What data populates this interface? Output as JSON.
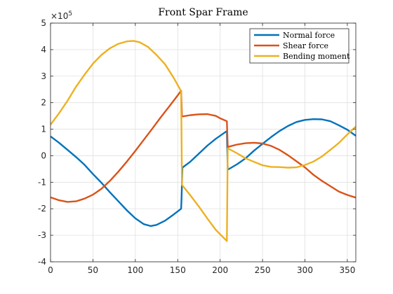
{
  "chart_data": {
    "type": "line",
    "title": "Front Spar Frame",
    "xlabel": "",
    "ylabel": "",
    "xlim": [
      0,
      360
    ],
    "ylim": [
      -4,
      5
    ],
    "y_scale_exponent": 5,
    "y_scale_prefix": "×10",
    "xticks": [
      0,
      50,
      100,
      150,
      200,
      250,
      300,
      350
    ],
    "yticks": [
      -4,
      -3,
      -2,
      -1,
      0,
      1,
      2,
      3,
      4,
      5
    ],
    "grid": true,
    "legend_position": "top-right",
    "series": [
      {
        "name": "Normal force",
        "color": "#0072BD",
        "points": [
          [
            0,
            0.73
          ],
          [
            10,
            0.49
          ],
          [
            20,
            0.22
          ],
          [
            30,
            -0.05
          ],
          [
            40,
            -0.34
          ],
          [
            50,
            -0.69
          ],
          [
            60,
            -1.02
          ],
          [
            70,
            -1.38
          ],
          [
            80,
            -1.72
          ],
          [
            90,
            -2.06
          ],
          [
            100,
            -2.36
          ],
          [
            110,
            -2.58
          ],
          [
            118,
            -2.65
          ],
          [
            125,
            -2.61
          ],
          [
            135,
            -2.45
          ],
          [
            145,
            -2.22
          ],
          [
            154,
            -2.0
          ],
          [
            154.5,
            -1.6
          ],
          [
            155.5,
            -0.45
          ],
          [
            165,
            -0.22
          ],
          [
            175,
            0.08
          ],
          [
            185,
            0.38
          ],
          [
            195,
            0.64
          ],
          [
            208,
            0.93
          ],
          [
            209,
            -0.53
          ],
          [
            220,
            -0.32
          ],
          [
            230,
            -0.1
          ],
          [
            240,
            0.19
          ],
          [
            250,
            0.45
          ],
          [
            260,
            0.7
          ],
          [
            270,
            0.93
          ],
          [
            280,
            1.12
          ],
          [
            290,
            1.27
          ],
          [
            300,
            1.35
          ],
          [
            310,
            1.38
          ],
          [
            320,
            1.37
          ],
          [
            330,
            1.3
          ],
          [
            340,
            1.15
          ],
          [
            350,
            0.98
          ],
          [
            360,
            0.75
          ]
        ]
      },
      {
        "name": "Shear force",
        "color": "#D95319",
        "points": [
          [
            0,
            -1.57
          ],
          [
            10,
            -1.68
          ],
          [
            20,
            -1.74
          ],
          [
            30,
            -1.72
          ],
          [
            40,
            -1.62
          ],
          [
            50,
            -1.47
          ],
          [
            60,
            -1.25
          ],
          [
            70,
            -0.95
          ],
          [
            80,
            -0.6
          ],
          [
            90,
            -0.22
          ],
          [
            100,
            0.18
          ],
          [
            110,
            0.6
          ],
          [
            120,
            1.02
          ],
          [
            130,
            1.45
          ],
          [
            140,
            1.86
          ],
          [
            150,
            2.28
          ],
          [
            154,
            2.45
          ],
          [
            155,
            1.48
          ],
          [
            165,
            1.53
          ],
          [
            175,
            1.56
          ],
          [
            185,
            1.57
          ],
          [
            195,
            1.5
          ],
          [
            200,
            1.41
          ],
          [
            208,
            1.3
          ],
          [
            209,
            0.33
          ],
          [
            220,
            0.42
          ],
          [
            230,
            0.47
          ],
          [
            240,
            0.49
          ],
          [
            250,
            0.46
          ],
          [
            260,
            0.37
          ],
          [
            270,
            0.22
          ],
          [
            280,
            0.02
          ],
          [
            290,
            -0.21
          ],
          [
            300,
            -0.44
          ],
          [
            310,
            -0.72
          ],
          [
            320,
            -0.95
          ],
          [
            330,
            -1.15
          ],
          [
            340,
            -1.35
          ],
          [
            350,
            -1.48
          ],
          [
            360,
            -1.58
          ]
        ]
      },
      {
        "name": "Bending moment",
        "color": "#EDB120",
        "points": [
          [
            0,
            1.17
          ],
          [
            10,
            1.6
          ],
          [
            20,
            2.07
          ],
          [
            30,
            2.6
          ],
          [
            40,
            3.05
          ],
          [
            50,
            3.47
          ],
          [
            60,
            3.8
          ],
          [
            70,
            4.05
          ],
          [
            80,
            4.22
          ],
          [
            90,
            4.31
          ],
          [
            98,
            4.33
          ],
          [
            105,
            4.28
          ],
          [
            115,
            4.1
          ],
          [
            125,
            3.8
          ],
          [
            135,
            3.45
          ],
          [
            145,
            2.95
          ],
          [
            152,
            2.55
          ],
          [
            154,
            2.42
          ],
          [
            155,
            -1.1
          ],
          [
            165,
            -1.5
          ],
          [
            175,
            -1.92
          ],
          [
            185,
            -2.37
          ],
          [
            195,
            -2.8
          ],
          [
            208,
            -3.22
          ],
          [
            209,
            0.28
          ],
          [
            220,
            0.09
          ],
          [
            230,
            -0.1
          ],
          [
            240,
            -0.23
          ],
          [
            250,
            -0.36
          ],
          [
            260,
            -0.42
          ],
          [
            270,
            -0.43
          ],
          [
            280,
            -0.45
          ],
          [
            290,
            -0.44
          ],
          [
            300,
            -0.35
          ],
          [
            310,
            -0.22
          ],
          [
            320,
            -0.03
          ],
          [
            330,
            0.22
          ],
          [
            340,
            0.48
          ],
          [
            350,
            0.8
          ],
          [
            360,
            1.1
          ]
        ]
      }
    ]
  }
}
